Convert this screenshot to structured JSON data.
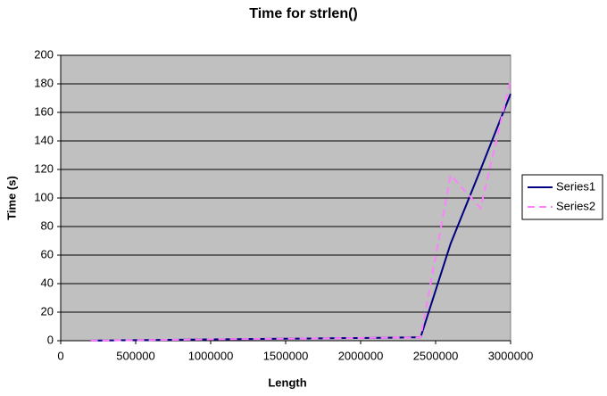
{
  "chart_data": {
    "type": "line",
    "title": "Time for strlen()",
    "x_label": "Length",
    "y_label": "Time (s)",
    "x": [
      200000,
      400000,
      600000,
      800000,
      1000000,
      1200000,
      1400000,
      1600000,
      1800000,
      2000000,
      2200000,
      2400000,
      2600000,
      2800000,
      3000000
    ],
    "series": [
      {
        "name": "Series1",
        "color": "#000080",
        "dash": false,
        "values": [
          0.1,
          0.3,
          0.5,
          0.7,
          0.9,
          1.1,
          1.3,
          1.5,
          1.7,
          1.9,
          2.1,
          2.4,
          68,
          120,
          173
        ]
      },
      {
        "name": "Series2",
        "color": "#ff80ff",
        "dash": true,
        "values": [
          0.1,
          0.3,
          0.5,
          0.7,
          0.9,
          1.1,
          1.3,
          1.5,
          1.7,
          1.9,
          2.1,
          2.3,
          116,
          93,
          183
        ]
      }
    ],
    "xlim": [
      0,
      3000000
    ],
    "xticks": [
      0,
      500000,
      1000000,
      1500000,
      2000000,
      2500000,
      3000000
    ],
    "ylim": [
      0,
      200
    ],
    "yticks": [
      0,
      20,
      40,
      60,
      80,
      100,
      120,
      140,
      160,
      180,
      200
    ],
    "grid": true,
    "legend": "right"
  }
}
